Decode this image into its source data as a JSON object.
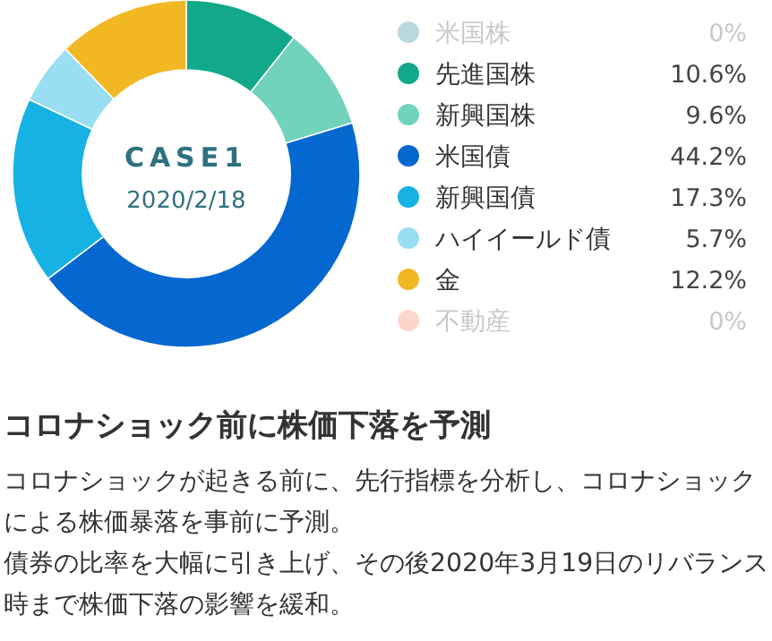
{
  "chart_data": {
    "type": "donut",
    "title": "CASE1",
    "subtitle": "2020/2/18",
    "categories": [
      "米国株",
      "先進国株",
      "新興国株",
      "米国債",
      "新興国債",
      "ハイイールド債",
      "金",
      "不動産"
    ],
    "values": [
      0,
      10.6,
      9.6,
      44.2,
      17.3,
      5.7,
      12.2,
      0
    ],
    "value_labels": [
      "0%",
      "10.6%",
      "9.6%",
      "44.2%",
      "17.3%",
      "5.7%",
      "12.2%",
      "0%"
    ],
    "colors": [
      "#b9d9dc",
      "#12a88a",
      "#72d3bd",
      "#0568d0",
      "#15b2e3",
      "#99def3",
      "#f2b824",
      "#fdd6cb"
    ],
    "legend": "right",
    "annotations": [
      "コロナショック前に株価下落を予測",
      "コロナショックが起きる前に、先行指標を分析し、コロナショックによる株価暴落を事前に予測。",
      "債券の比率を大幅に引き上げ、その後2020年3月19日のリバランス時まで株価下落の影響を緩和。"
    ]
  }
}
